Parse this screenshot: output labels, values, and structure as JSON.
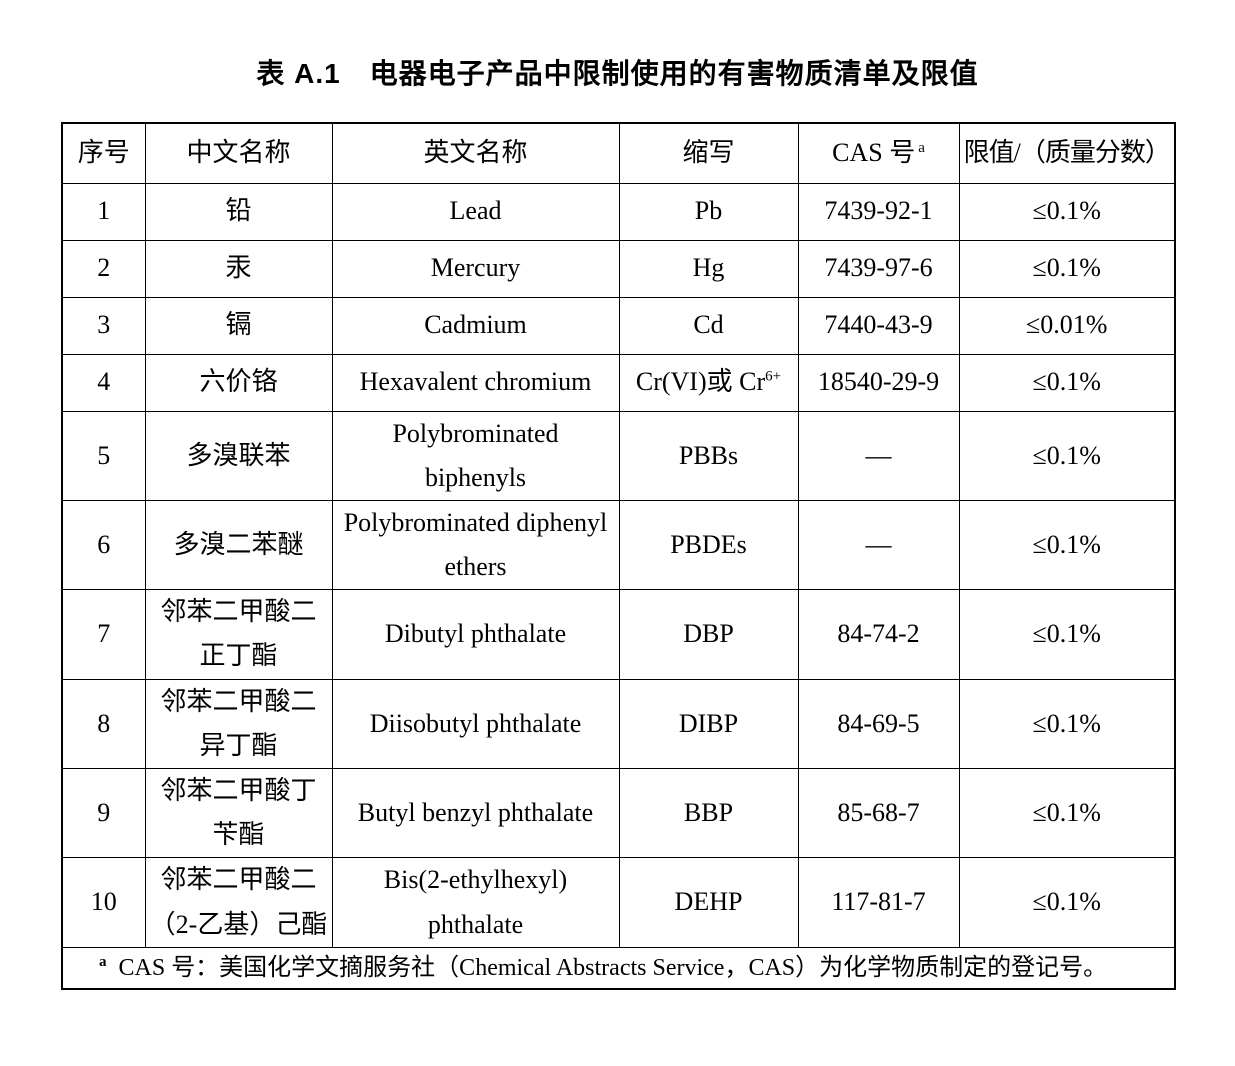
{
  "title": "表 A.1　电器电子产品中限制使用的有害物质清单及限值",
  "colors": {
    "text": "#000000",
    "background": "#ffffff",
    "border": "#000000"
  },
  "table": {
    "headers": {
      "no": "序号",
      "zh": "中文名称",
      "en": "英文名称",
      "abbr": "缩写",
      "cas": "CAS 号",
      "cas_sup": "a",
      "limit": "限值/（质量分数）"
    },
    "rows": [
      {
        "no": "1",
        "zh": "铅",
        "en": "Lead",
        "abbr": "Pb",
        "cas": "7439-92-1",
        "limit": "≤0.1%"
      },
      {
        "no": "2",
        "zh": "汞",
        "en": "Mercury",
        "abbr": "Hg",
        "cas": "7439-97-6",
        "limit": "≤0.1%"
      },
      {
        "no": "3",
        "zh": "镉",
        "en": "Cadmium",
        "abbr": "Cd",
        "cas": "7440-43-9",
        "limit": "≤0.01%"
      },
      {
        "no": "4",
        "zh": "六价铬",
        "en": "Hexavalent chromium",
        "abbr": "Cr(VI)或 Cr",
        "abbr_sup": "6+",
        "cas": "18540-29-9",
        "limit": "≤0.1%"
      },
      {
        "no": "5",
        "zh": "多溴联苯",
        "en": "Polybrominated\nbiphenyls",
        "abbr": "PBBs",
        "cas": "—",
        "limit": "≤0.1%"
      },
      {
        "no": "6",
        "zh": "多溴二苯醚",
        "en": "Polybrominated diphenyl\nethers",
        "abbr": "PBDEs",
        "cas": "—",
        "limit": "≤0.1%"
      },
      {
        "no": "7",
        "zh": "邻苯二甲酸二\n正丁酯",
        "en": "Dibutyl phthalate",
        "abbr": "DBP",
        "cas": "84-74-2",
        "limit": "≤0.1%"
      },
      {
        "no": "8",
        "zh": "邻苯二甲酸二\n异丁酯",
        "en": "Diisobutyl phthalate",
        "abbr": "DIBP",
        "cas": "84-69-5",
        "limit": "≤0.1%"
      },
      {
        "no": "9",
        "zh": "邻苯二甲酸丁\n苄酯",
        "en": "Butyl benzyl phthalate",
        "abbr": "BBP",
        "cas": "85-68-7",
        "limit": "≤0.1%"
      },
      {
        "no": "10",
        "zh": "邻苯二甲酸二\n（2-乙基）己酯",
        "en": "Bis(2-ethylhexyl)\nphthalate",
        "abbr": "DEHP",
        "cas": "117-81-7",
        "limit": "≤0.1%"
      }
    ],
    "footnote": {
      "marker": "a",
      "text": "CAS 号：美国化学文摘服务社（Chemical Abstracts Service，CAS）为化学物质制定的登记号。"
    }
  }
}
